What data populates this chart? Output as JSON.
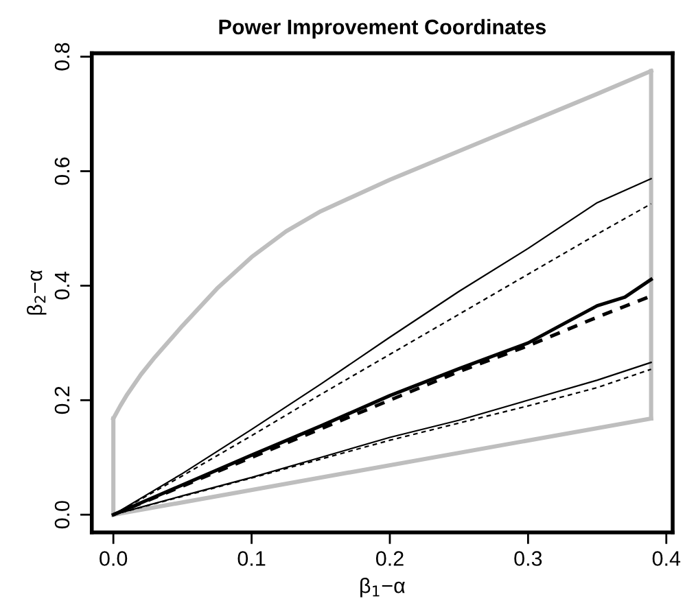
{
  "chart_data": {
    "type": "line",
    "title": "Power Improvement Coordinates",
    "xlabel": "β$_{1}$−α",
    "ylabel": "β$_{2}$−α",
    "xlim": [
      -0.0156,
      0.4046
    ],
    "ylim": [
      -0.031,
      0.806
    ],
    "xticks": [
      {
        "value": 0,
        "label": "0.0"
      },
      0.1,
      0.2,
      0.3,
      0.4
    ],
    "yticks": [
      {
        "value": 0,
        "label": "0.0"
      },
      0.2,
      0.4,
      0.6,
      0.8
    ],
    "grid": false,
    "legend": false,
    "marker": "none",
    "series": [
      {
        "color": "#bebebe",
        "line_style": "solid",
        "x": [
          0,
          0.005,
          0.01,
          0.02,
          0.03,
          0.05,
          0.075,
          0.1,
          0.125,
          0.15,
          0.2,
          0.25,
          0.3,
          0.35,
          0.389
        ],
        "values": [
          0.168,
          0.19,
          0.21,
          0.245,
          0.275,
          0.33,
          0.395,
          0.45,
          0.495,
          0.53,
          0.585,
          0.635,
          0.685,
          0.735,
          0.775
        ]
      },
      {
        "color": "#bebebe",
        "line_style": "solid",
        "x": [
          0,
          0.389
        ],
        "values": [
          0,
          0.168
        ]
      },
      {
        "color": "#bebebe",
        "line_style": "solid",
        "x": [
          0,
          0
        ],
        "values": [
          0,
          0.168
        ]
      },
      {
        "color": "#bebebe",
        "line_style": "solid",
        "x": [
          0.389,
          0.389
        ],
        "values": [
          0.168,
          0.775
        ]
      },
      {
        "color": "#000000",
        "line_style": "solid",
        "x": [
          0,
          0.05,
          0.1,
          0.15,
          0.2,
          0.25,
          0.3,
          0.35,
          0.389
        ],
        "values": [
          0,
          0.072,
          0.149,
          0.228,
          0.31,
          0.39,
          0.465,
          0.545,
          0.587
        ]
      },
      {
        "color": "#000000",
        "line_style": "dashed",
        "x": [
          0,
          0.05,
          0.1,
          0.15,
          0.2,
          0.25,
          0.3,
          0.35,
          0.389
        ],
        "values": [
          0,
          0.068,
          0.138,
          0.21,
          0.28,
          0.35,
          0.42,
          0.49,
          0.543
        ]
      },
      {
        "color": "#000000",
        "line_style": "solid",
        "x": [
          0,
          0.05,
          0.1,
          0.15,
          0.2,
          0.25,
          0.3,
          0.35,
          0.37,
          0.389
        ],
        "values": [
          0,
          0.052,
          0.104,
          0.155,
          0.208,
          0.255,
          0.3,
          0.365,
          0.38,
          0.411
        ]
      },
      {
        "color": "#000000",
        "line_style": "dashed",
        "x": [
          0,
          0.05,
          0.1,
          0.15,
          0.2,
          0.25,
          0.3,
          0.35,
          0.389
        ],
        "values": [
          0,
          0.05,
          0.1,
          0.15,
          0.2,
          0.25,
          0.295,
          0.345,
          0.382
        ]
      },
      {
        "color": "#000000",
        "line_style": "solid",
        "x": [
          0,
          0.05,
          0.1,
          0.15,
          0.2,
          0.25,
          0.3,
          0.35,
          0.389
        ],
        "values": [
          0,
          0.033,
          0.065,
          0.1,
          0.135,
          0.165,
          0.2,
          0.235,
          0.266
        ]
      },
      {
        "color": "#000000",
        "line_style": "dashed",
        "x": [
          0,
          0.05,
          0.1,
          0.15,
          0.2,
          0.25,
          0.3,
          0.35,
          0.389
        ],
        "values": [
          0,
          0.032,
          0.064,
          0.097,
          0.13,
          0.16,
          0.19,
          0.222,
          0.254
        ]
      }
    ]
  }
}
